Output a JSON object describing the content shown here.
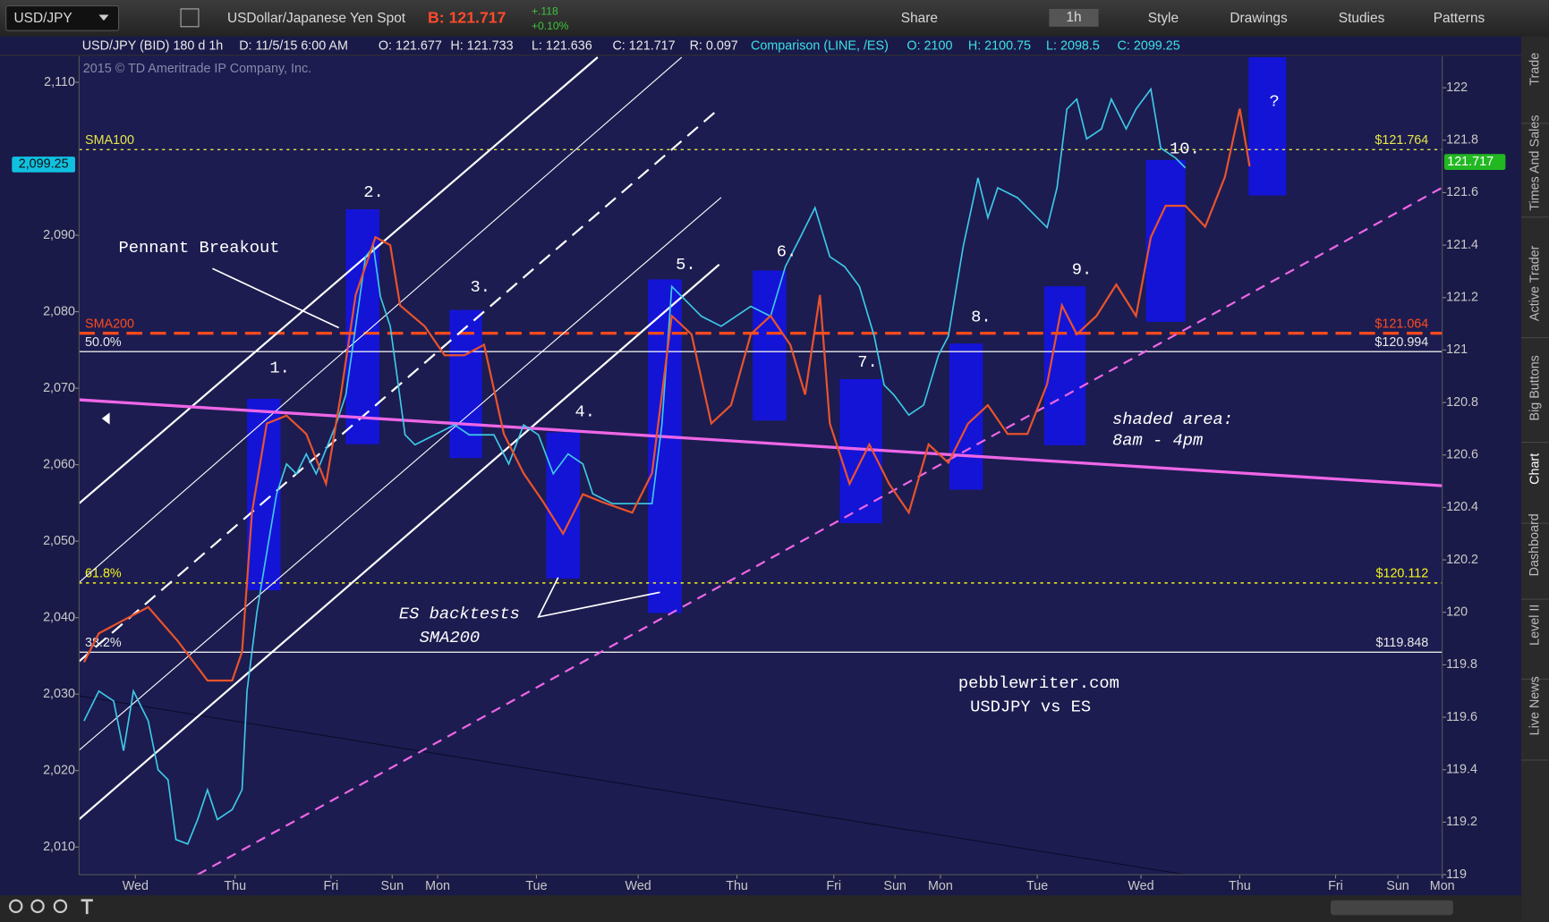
{
  "toolbar": {
    "symbol": "USD/JPY",
    "description": "USDollar/Japanese Yen Spot",
    "bid": "B: 121.717",
    "change": "+.118",
    "change_pct": "+0.10%",
    "buttons": [
      "Share",
      "1h",
      "Style",
      "Drawings",
      "Studies",
      "Patterns"
    ]
  },
  "side_tabs": [
    "Trade",
    "Times And Sales",
    "Active Trader",
    "Big Buttons",
    "Chart",
    "Dashboard",
    "Level II",
    "Live News"
  ],
  "chart_data": {
    "type": "line",
    "header": [
      "USD/JPY (BID) 180 d 1h",
      "D: 11/5/15 6:00 AM",
      "O: 121.677",
      "H: 121.733",
      "L: 121.636",
      "C: 121.717",
      "R: 0.097",
      "Comparison (LINE, /ES)",
      "O: 2100",
      "H: 2100.75",
      "L: 2098.5",
      "C: 2099.25"
    ],
    "copyright": "2015 © TD Ameritrade IP Company, Inc.",
    "xlim": [
      0,
      13.8
    ],
    "xticks": [
      {
        "value": 0.57,
        "label": "Wed"
      },
      {
        "value": 1.58,
        "label": "Thu"
      },
      {
        "value": 2.55,
        "label": "Fri"
      },
      {
        "value": 3.17,
        "label": "Sun"
      },
      {
        "value": 3.63,
        "label": "Mon"
      },
      {
        "value": 4.63,
        "label": "Tue"
      },
      {
        "value": 5.66,
        "label": "Wed"
      },
      {
        "value": 6.66,
        "label": "Thu"
      },
      {
        "value": 7.64,
        "label": "Fri"
      },
      {
        "value": 8.26,
        "label": "Sun"
      },
      {
        "value": 8.72,
        "label": "Mon"
      },
      {
        "value": 9.7,
        "label": "Tue"
      },
      {
        "value": 10.75,
        "label": "Wed"
      },
      {
        "value": 11.75,
        "label": "Thu"
      },
      {
        "value": 12.72,
        "label": "Fri"
      },
      {
        "value": 13.35,
        "label": "Sun"
      },
      {
        "value": 13.8,
        "label": "Mon"
      }
    ],
    "ylim": [
      2006.4,
      2113.4
    ],
    "yticks": [
      {
        "value": 2010,
        "label": "2,010"
      },
      {
        "value": 2020,
        "label": "2,020"
      },
      {
        "value": 2030,
        "label": "2,030"
      },
      {
        "value": 2040,
        "label": "2,040"
      },
      {
        "value": 2050,
        "label": "2,050"
      },
      {
        "value": 2060,
        "label": "2,060"
      },
      {
        "value": 2070,
        "label": "2,070"
      },
      {
        "value": 2080,
        "label": "2,080"
      },
      {
        "value": 2090,
        "label": "2,090"
      },
      {
        "value": 2110,
        "label": "2,110"
      }
    ],
    "y2lim": [
      119.0,
      122.12
    ],
    "y2ticks": [
      119,
      119.2,
      119.4,
      119.6,
      119.8,
      120,
      120.2,
      120.4,
      120.6,
      120.8,
      121,
      121.2,
      121.4,
      121.6,
      121.8,
      122
    ],
    "series": [
      {
        "color": "#3ec9e6",
        "x": [
          0.05,
          0.2,
          0.35,
          0.45,
          0.55,
          0.7,
          0.8,
          0.9,
          0.98,
          1.1,
          1.2,
          1.3,
          1.4,
          1.55,
          1.65,
          1.7,
          1.8,
          1.9,
          2.0,
          2.1,
          2.2,
          2.3,
          2.4,
          2.6,
          2.7,
          2.8,
          2.9,
          2.98,
          3.05,
          3.15,
          3.3,
          3.4,
          3.6,
          3.8,
          3.95,
          4.1,
          4.2,
          4.35,
          4.5,
          4.65,
          4.8,
          4.95,
          5.1,
          5.2,
          5.4,
          5.6,
          5.8,
          5.9,
          6.0,
          6.1,
          6.3,
          6.5,
          6.65,
          6.8,
          7.0,
          7.15,
          7.3,
          7.45,
          7.6,
          7.75,
          7.9,
          8.05,
          8.15,
          8.25,
          8.4,
          8.55,
          8.7,
          8.8,
          8.95,
          9.1,
          9.2,
          9.3,
          9.5,
          9.7,
          9.8,
          9.9,
          10.0,
          10.1,
          10.2,
          10.35,
          10.45,
          10.6,
          10.7,
          10.85,
          10.95,
          11.1,
          11.2
        ],
        "values": [
          2026.5,
          2030.4,
          2029.1,
          2022.6,
          2030.4,
          2026.5,
          2020.1,
          2018.8,
          2011,
          2010.4,
          2013.6,
          2017.5,
          2013.6,
          2014.9,
          2017.5,
          2030.4,
          2040.7,
          2048.5,
          2056.2,
          2060.1,
          2058.8,
          2061.4,
          2058.8,
          2065.2,
          2069.1,
          2078.1,
          2087.2,
          2088.5,
          2082,
          2078.1,
          2063.9,
          2062.6,
          2063.9,
          2065.2,
          2063.9,
          2063.9,
          2063.9,
          2060.1,
          2065.2,
          2063.9,
          2058.8,
          2061.4,
          2060.1,
          2056.2,
          2054.9,
          2054.9,
          2054.9,
          2065.2,
          2083.3,
          2082,
          2079.4,
          2078.1,
          2079.4,
          2080.7,
          2079.4,
          2085.9,
          2089.7,
          2093.6,
          2087.2,
          2085.9,
          2083.3,
          2076.8,
          2070.4,
          2069.1,
          2066.5,
          2067.8,
          2074.3,
          2076.8,
          2088.5,
          2097.5,
          2092.3,
          2096.2,
          2094.9,
          2092.3,
          2091,
          2096.2,
          2106.5,
          2107.8,
          2102.6,
          2103.9,
          2107.8,
          2103.9,
          2106.5,
          2109.1,
          2101.4,
          2100.1,
          2098.8
        ]
      },
      {
        "color": "#e8532b",
        "axis": "y2",
        "x": [
          0.05,
          0.2,
          0.4,
          0.7,
          1.0,
          1.3,
          1.55,
          1.65,
          1.75,
          1.9,
          2.1,
          2.3,
          2.5,
          2.65,
          2.8,
          3.0,
          3.15,
          3.25,
          3.5,
          3.7,
          3.9,
          4.1,
          4.3,
          4.5,
          4.7,
          4.9,
          5.1,
          5.3,
          5.6,
          5.8,
          6.0,
          6.2,
          6.4,
          6.6,
          6.8,
          7.0,
          7.2,
          7.35,
          7.5,
          7.6,
          7.8,
          8.0,
          8.2,
          8.4,
          8.6,
          8.8,
          9.0,
          9.2,
          9.4,
          9.6,
          9.8,
          9.95,
          10.1,
          10.3,
          10.5,
          10.7,
          10.85,
          11.0,
          11.2,
          11.4,
          11.6,
          11.75,
          11.85
        ],
        "values": [
          119.81,
          119.92,
          119.96,
          120.02,
          119.89,
          119.74,
          119.74,
          119.85,
          120.38,
          120.72,
          120.75,
          120.68,
          120.49,
          120.83,
          121.21,
          121.43,
          121.4,
          121.17,
          121.09,
          120.98,
          120.98,
          121.02,
          120.68,
          120.53,
          120.42,
          120.3,
          120.45,
          120.42,
          120.38,
          120.53,
          121.13,
          121.06,
          120.72,
          120.79,
          121.06,
          121.13,
          121.02,
          120.83,
          121.21,
          120.72,
          120.49,
          120.64,
          120.49,
          120.38,
          120.64,
          120.57,
          120.72,
          120.79,
          120.68,
          120.68,
          120.87,
          121.17,
          121.06,
          121.13,
          121.25,
          121.13,
          121.43,
          121.55,
          121.55,
          121.47,
          121.66,
          121.92,
          121.7
        ]
      }
    ],
    "levels": [
      {
        "name": "SMA100",
        "value": 121.764,
        "label": "$121.764",
        "color": "#e6e64a",
        "style": "dotted"
      },
      {
        "name": "SMA200",
        "value": 121.064,
        "label": "$121.064",
        "color": "#ff4a1c",
        "style": "dashed"
      },
      {
        "name": "50.0%",
        "value": 120.994,
        "label": "$120.994",
        "color": "#e8e8e8",
        "style": "solid"
      },
      {
        "name": "61.8%",
        "value": 120.112,
        "label": "$120.112",
        "color": "#f4f41c",
        "style": "dotted"
      },
      {
        "name": "38.2%",
        "value": 119.848,
        "label": "$119.848",
        "color": "#e8e8e8",
        "style": "solid"
      }
    ],
    "last_price": {
      "value": 2099.25,
      "label": "2,099.25"
    },
    "last_price_y2": 121.717,
    "annotations": [
      "1.",
      "2.",
      "3.",
      "4.",
      "5.",
      "6.",
      "7.",
      "8.",
      "9.",
      "10.",
      "?",
      "Pennant Breakout",
      "ES backtests",
      "SMA200",
      "shaded area:",
      "8am - 4pm",
      "pebblewriter.com",
      "USDJPY vs ES"
    ]
  }
}
